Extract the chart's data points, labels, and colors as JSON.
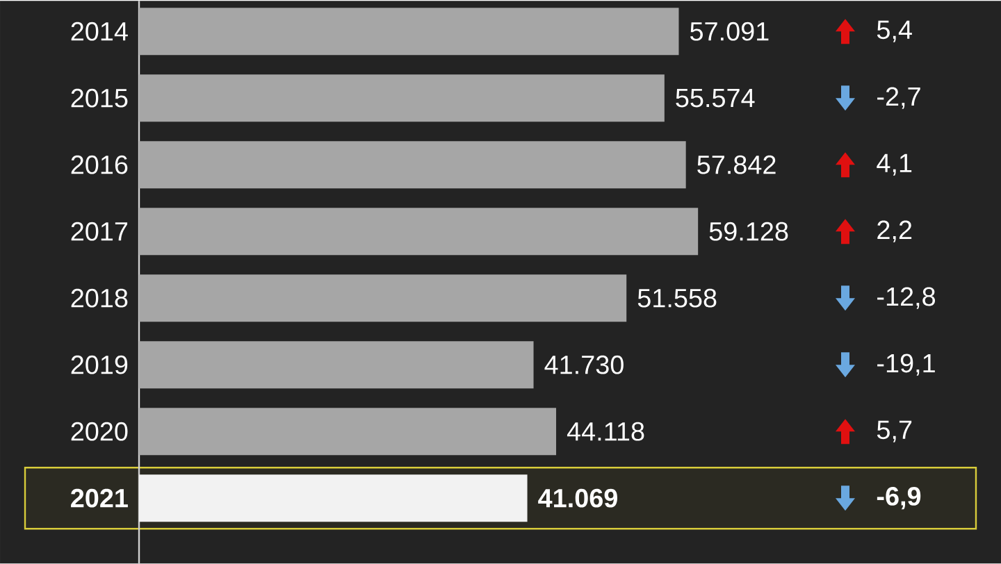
{
  "chart_data": {
    "type": "bar",
    "orientation": "horizontal",
    "categories": [
      "2014",
      "2015",
      "2016",
      "2017",
      "2018",
      "2019",
      "2020",
      "2021"
    ],
    "values": [
      57091,
      55574,
      57842,
      59128,
      51558,
      41730,
      44118,
      41069
    ],
    "colors": [
      "#a6a6a6",
      "#a6a6a6",
      "#a6a6a6",
      "#a6a6a6",
      "#a6a6a6",
      "#a6a6a6",
      "#a6a6a6",
      "#f2f2f2"
    ],
    "value_labels": [
      "57.091",
      "55.574",
      "57.842",
      "59.128",
      "51.558",
      "41.730",
      "44.118",
      "41.069"
    ],
    "annotations": [
      "5,4",
      "-2,7",
      "4,1",
      "2,2",
      "-12,8",
      "-19,1",
      "5,7",
      "-6,9"
    ],
    "bands": [
      {
        "axis": "y",
        "from": "2021",
        "to": "2021",
        "color": "#d8cc3a"
      }
    ]
  }
}
